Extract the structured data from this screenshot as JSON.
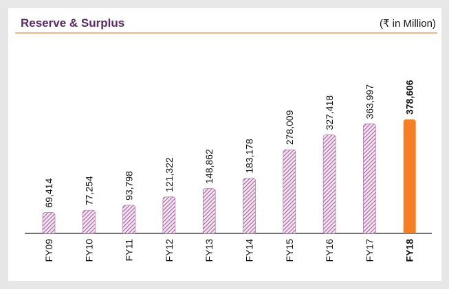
{
  "chart_data": {
    "type": "bar",
    "title": "Reserve & Surplus",
    "subtitle": "(₹ in Million)",
    "categories": [
      "FY09",
      "FY10",
      "FY11",
      "FY12",
      "FY13",
      "FY14",
      "FY15",
      "FY16",
      "FY17",
      "FY18"
    ],
    "values": [
      69414,
      77254,
      93798,
      121322,
      148862,
      183178,
      278009,
      327418,
      363997,
      378606
    ],
    "value_labels": [
      "69,414",
      "77,254",
      "93,798",
      "121,322",
      "148,862",
      "183,178",
      "278,009",
      "327,418",
      "363,997",
      "378,606"
    ],
    "color": "#a0649a",
    "highlight_color": "#f47f25",
    "highlight_index": 9
  }
}
